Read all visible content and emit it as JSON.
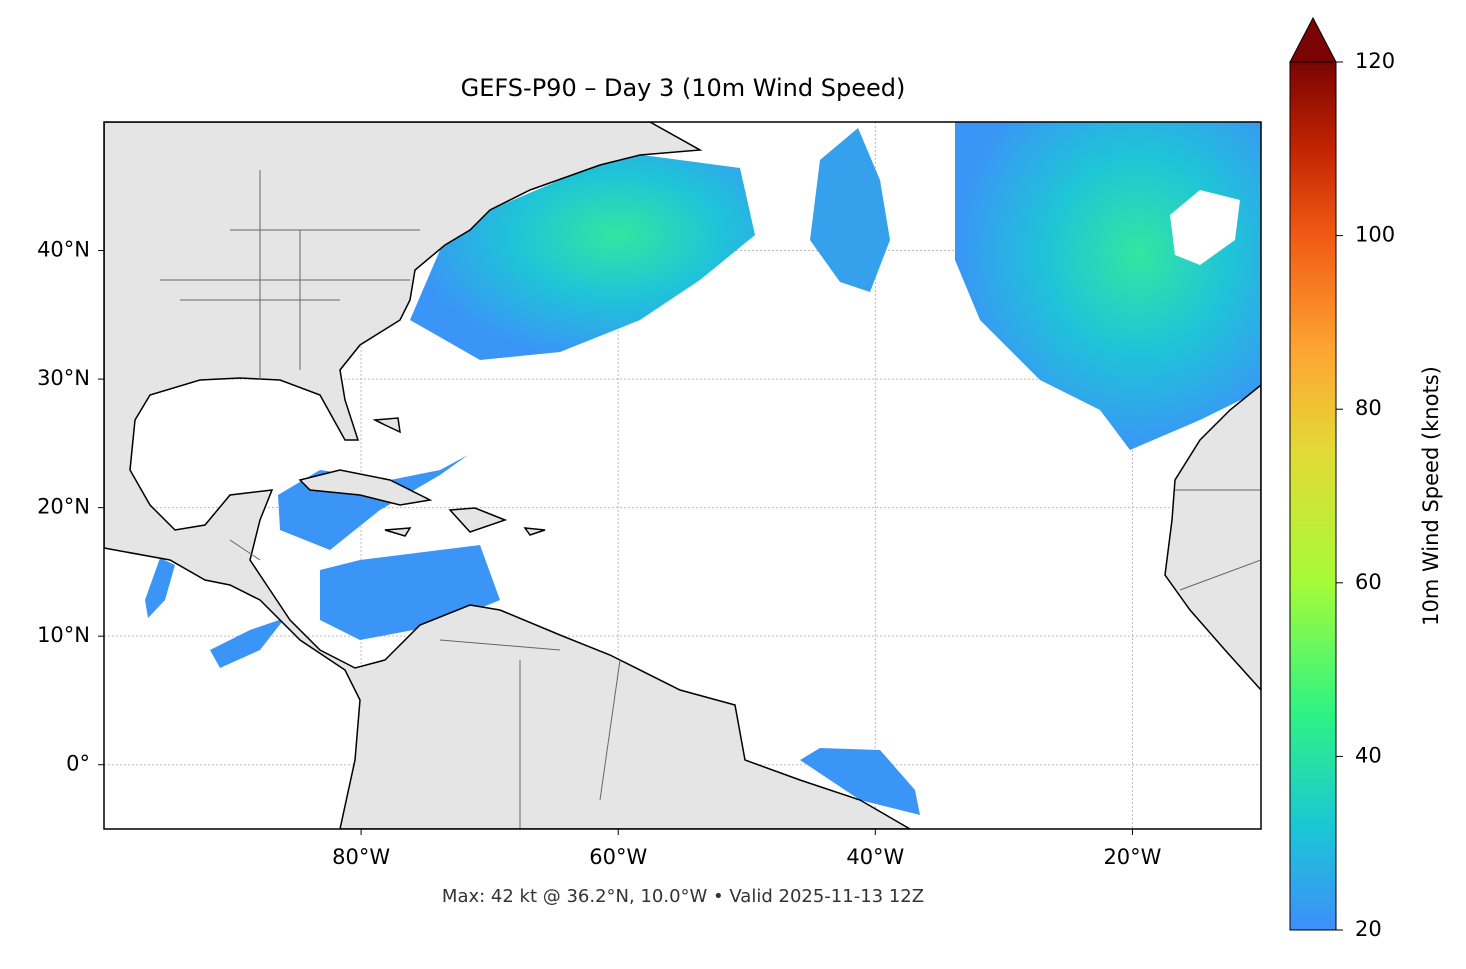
{
  "title": "GEFS-P90 – Day 3 (10m Wind Speed)",
  "map": {
    "xlim": [
      -100,
      -10
    ],
    "ylim": [
      -5,
      50
    ],
    "xticks": [
      {
        "value": -80,
        "label": "80°W"
      },
      {
        "value": -60,
        "label": "60°W"
      },
      {
        "value": -40,
        "label": "40°W"
      },
      {
        "value": -20,
        "label": "20°W"
      }
    ],
    "yticks": [
      {
        "value": 0,
        "label": "0°"
      },
      {
        "value": 10,
        "label": "10°N"
      },
      {
        "value": 20,
        "label": "20°N"
      },
      {
        "value": 30,
        "label": "30°N"
      },
      {
        "value": 40,
        "label": "40°N"
      }
    ],
    "grid": true
  },
  "colorbar": {
    "label": "10m Wind Speed (knots)",
    "lim": [
      20,
      120
    ],
    "ticks": [
      20,
      40,
      60,
      80,
      100,
      120
    ]
  },
  "footer": "Max: 42 kt @ 36.2°N, 10.0°W • Valid 2025-11-13 12Z"
}
